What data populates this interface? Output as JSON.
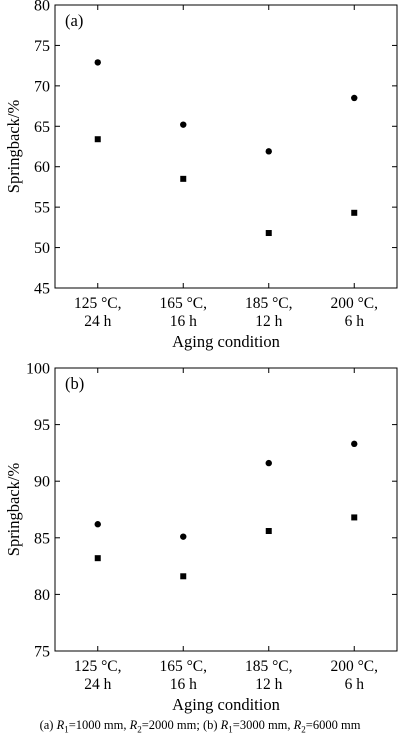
{
  "chart_data": [
    {
      "type": "scatter",
      "panel_label": "(a)",
      "categories": [
        [
          "125 °C,",
          "24 h"
        ],
        [
          "165 °C,",
          "16 h"
        ],
        [
          "185 °C,",
          "12 h"
        ],
        [
          "200 °C,",
          "6 h"
        ]
      ],
      "series": [
        {
          "marker": "circle",
          "values": [
            72.9,
            65.2,
            61.9,
            68.5
          ]
        },
        {
          "marker": "square",
          "values": [
            63.4,
            58.5,
            51.8,
            54.3
          ]
        }
      ],
      "xlabel": "Aging condition",
      "ylabel": "Springback/%",
      "ylim": [
        45,
        80
      ],
      "yticks": [
        45,
        50,
        55,
        60,
        65,
        70,
        75,
        80
      ],
      "grid": false
    },
    {
      "type": "scatter",
      "panel_label": "(b)",
      "categories": [
        [
          "125 °C,",
          "24 h"
        ],
        [
          "165 °C,",
          "16 h"
        ],
        [
          "185 °C,",
          "12 h"
        ],
        [
          "200 °C,",
          "6 h"
        ]
      ],
      "series": [
        {
          "marker": "circle",
          "values": [
            86.2,
            85.1,
            91.6,
            93.3
          ]
        },
        {
          "marker": "square",
          "values": [
            83.2,
            81.6,
            85.6,
            86.8
          ]
        }
      ],
      "xlabel": "Aging condition",
      "ylabel": "Springback/%",
      "ylim": [
        75,
        100
      ],
      "yticks": [
        75,
        80,
        85,
        90,
        95,
        100
      ],
      "grid": false
    }
  ],
  "caption": {
    "part_a": {
      "prefix": "(a) ",
      "r1_sym": "R",
      "r1_sub": "1",
      "r1_val": "=1000 mm, ",
      "r2_sym": "R",
      "r2_sub": "2",
      "r2_val": "=2000 mm; "
    },
    "part_b": {
      "prefix": "(b) ",
      "r1_sym": "R",
      "r1_sub": "1",
      "r1_val": "=3000 mm, ",
      "r2_sym": "R",
      "r2_sub": "2",
      "r2_val": "=6000 mm"
    }
  },
  "colors": {
    "marker": "#000000",
    "axis": "#000000",
    "background": "#ffffff"
  }
}
